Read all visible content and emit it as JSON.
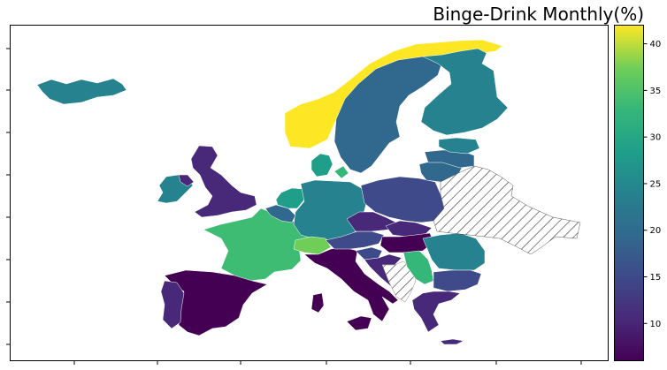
{
  "map": {
    "title": "Binge-Drink Monthly(%)",
    "colormap": "viridis",
    "no_data_pattern": "diagonal-hatch",
    "colorbar": {
      "min": 6,
      "max": 42,
      "ticks": [
        10,
        15,
        20,
        25,
        30,
        35,
        40
      ],
      "tick_labels": [
        "10",
        "15",
        "20",
        "25",
        "30",
        "35",
        "40"
      ]
    },
    "colors": {
      "very_low": "#440154",
      "low": "#482878",
      "mid_low": "#3e4a89",
      "mid": "#31688e",
      "mid_teal": "#26828e",
      "teal": "#1f9e89",
      "green": "#35b779",
      "lime": "#6ece58",
      "yellow": "#fde725"
    },
    "regions": [
      {
        "name": "Norway",
        "value": 41
      },
      {
        "name": "Sweden",
        "value": 16
      },
      {
        "name": "Finland",
        "value": 22
      },
      {
        "name": "Iceland",
        "value": 21
      },
      {
        "name": "United Kingdom",
        "value": 12
      },
      {
        "name": "Ireland",
        "value": 20
      },
      {
        "name": "France",
        "value": 31
      },
      {
        "name": "Spain",
        "value": 7
      },
      {
        "name": "Portugal",
        "value": 9
      },
      {
        "name": "Italy",
        "value": 7
      },
      {
        "name": "Germany",
        "value": 22
      },
      {
        "name": "Denmark",
        "value": 27
      },
      {
        "name": "Netherlands",
        "value": 24
      },
      {
        "name": "Belgium",
        "value": 17
      },
      {
        "name": "Switzerland",
        "value": 34
      },
      {
        "name": "Austria",
        "value": 12
      },
      {
        "name": "Czechia",
        "value": 12
      },
      {
        "name": "Slovakia",
        "value": 10
      },
      {
        "name": "Hungary",
        "value": 7
      },
      {
        "name": "Poland",
        "value": 14
      },
      {
        "name": "Lithuania",
        "value": 18
      },
      {
        "name": "Latvia",
        "value": 16
      },
      {
        "name": "Estonia",
        "value": 20
      },
      {
        "name": "Romania",
        "value": 22
      },
      {
        "name": "Bulgaria",
        "value": 14
      },
      {
        "name": "Serbia",
        "value": 28
      },
      {
        "name": "Slovenia",
        "value": 16
      },
      {
        "name": "Croatia",
        "value": 10
      },
      {
        "name": "Greece",
        "value": 12
      },
      {
        "name": "Belarus",
        "value": null
      },
      {
        "name": "Ukraine",
        "value": null
      }
    ]
  }
}
